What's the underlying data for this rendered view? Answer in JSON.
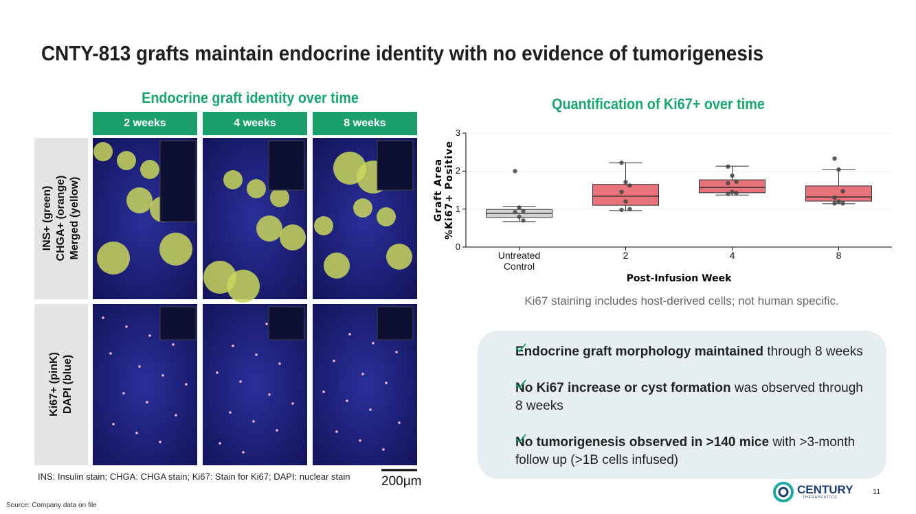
{
  "title": "CNTY-813 grafts maintain endocrine identity with no evidence of tumorigenesis",
  "left_panel": {
    "title": "Endocrine graft identity over time",
    "columns": [
      "2 weeks",
      "4 weeks",
      "8 weeks"
    ],
    "rows": [
      [
        "INS+ (green)",
        "CHGA+ (orange)",
        "Merged (yellow)"
      ],
      [
        "Ki67+ (pinK)",
        "DAPI (blue)"
      ]
    ],
    "footnote": "INS: Insulin stain; CHGA: CHGA stain; Ki67: Stain for Ki67; DAPI: nuclear stain",
    "scale_bar": "200μm"
  },
  "chart_data": {
    "type": "box",
    "title": "Quantification of Ki67+ over time",
    "ylabel": [
      "Graft Area",
      "%Ki67+ Positive"
    ],
    "xlabel": "Post-Infusion Week",
    "categories": [
      "Untreated Control",
      "2",
      "4",
      "8"
    ],
    "ylim": [
      0,
      3
    ],
    "yticks": [
      0,
      1,
      2,
      3
    ],
    "grid": true,
    "boxes": [
      {
        "color": "#d3d3d3",
        "whisker_low": 0.67,
        "q1": 0.78,
        "median": 0.89,
        "q3": 0.99,
        "whisker_high": 1.07,
        "points": [
          2.0,
          1.04,
          0.95,
          0.92,
          0.8,
          0.7
        ]
      },
      {
        "color": "#e8737a",
        "whisker_low": 0.96,
        "q1": 1.1,
        "median": 1.34,
        "q3": 1.65,
        "whisker_high": 2.22,
        "points": [
          2.22,
          1.71,
          1.62,
          1.45,
          1.2,
          1.0,
          0.98
        ]
      },
      {
        "color": "#e8737a",
        "whisker_low": 1.37,
        "q1": 1.43,
        "median": 1.57,
        "q3": 1.77,
        "whisker_high": 2.13,
        "points": [
          2.12,
          1.88,
          1.72,
          1.68,
          1.45,
          1.42,
          1.4
        ]
      },
      {
        "color": "#e8737a",
        "whisker_low": 1.14,
        "q1": 1.21,
        "median": 1.32,
        "q3": 1.61,
        "whisker_high": 2.04,
        "points": [
          2.33,
          2.04,
          1.47,
          1.3,
          1.2,
          1.15,
          1.15
        ]
      }
    ],
    "note": "Ki67 staining includes host-derived cells; not human specific."
  },
  "bullets": [
    {
      "bold": "Endocrine graft morphology maintained",
      "text": "through 8 weeks"
    },
    {
      "bold": "No Ki67 increase or cyst formation",
      "text": "was observed through 8 weeks"
    },
    {
      "bold": "No tumorigenesis observed in >140 mice",
      "text": "with >3-month follow up (>1B cells infused)"
    }
  ],
  "logo": {
    "name": "CENTURY",
    "sub": "THERAPEUTICS"
  },
  "page_number": "11",
  "source": "Source: Company data on file"
}
